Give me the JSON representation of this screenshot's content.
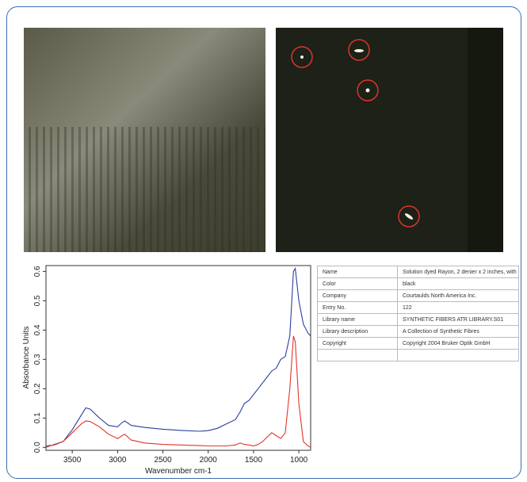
{
  "chart_data": {
    "type": "line",
    "x": [
      3790,
      3700,
      3600,
      3500,
      3400,
      3350,
      3300,
      3200,
      3100,
      3000,
      2950,
      2920,
      2850,
      2700,
      2500,
      2300,
      2100,
      2000,
      1900,
      1800,
      1700,
      1650,
      1600,
      1550,
      1500,
      1450,
      1400,
      1350,
      1300,
      1250,
      1200,
      1150,
      1100,
      1060,
      1040,
      1000,
      950,
      900,
      870
    ],
    "series": [
      {
        "color": "#2b3f9e",
        "values": [
          0.005,
          0.008,
          0.02,
          0.06,
          0.11,
          0.135,
          0.13,
          0.1,
          0.075,
          0.07,
          0.085,
          0.09,
          0.075,
          0.068,
          0.062,
          0.058,
          0.055,
          0.057,
          0.065,
          0.08,
          0.095,
          0.12,
          0.15,
          0.16,
          0.18,
          0.2,
          0.22,
          0.24,
          0.26,
          0.27,
          0.3,
          0.31,
          0.38,
          0.6,
          0.61,
          0.5,
          0.42,
          0.39,
          0.38
        ]
      },
      {
        "color": "#e0362a",
        "values": [
          0,
          0.01,
          0.02,
          0.05,
          0.08,
          0.09,
          0.088,
          0.07,
          0.045,
          0.03,
          0.04,
          0.045,
          0.025,
          0.015,
          0.01,
          0.008,
          0.006,
          0.005,
          0.005,
          0.005,
          0.008,
          0.015,
          0.01,
          0.008,
          0.005,
          0.01,
          0.02,
          0.035,
          0.05,
          0.04,
          0.03,
          0.05,
          0.2,
          0.38,
          0.36,
          0.15,
          0.02,
          0.005,
          0
        ]
      }
    ],
    "x_label": "Wavenumber cm-1",
    "y_label": "Absorbance Units",
    "xlim": [
      3790,
      870
    ],
    "ylim": [
      -0.01,
      0.62
    ],
    "xticks": [
      3500,
      3000,
      2500,
      2000,
      1500,
      1000
    ],
    "yticks": [
      {
        "value": 0,
        "label": "0.0"
      },
      0.1,
      0.2,
      0.3,
      0.4,
      0.5,
      0.6
    ]
  },
  "table": {
    "rows": [
      [
        "Name",
        "Solution dyed Rayon, 2 denier x 2 inches, with"
      ],
      [
        "Color",
        "black"
      ],
      [
        "Company",
        "Courtaulds North America Inc."
      ],
      [
        "Entry No.",
        "122"
      ],
      [
        "Library name",
        "SYNTHETIC FIBERS ATR LIBRARY.S01"
      ],
      [
        "Library description",
        "A Collection of Synthetic Fibres"
      ],
      [
        "Copyright",
        "Copyright 2004 Bruker Optik GmbH"
      ]
    ]
  }
}
